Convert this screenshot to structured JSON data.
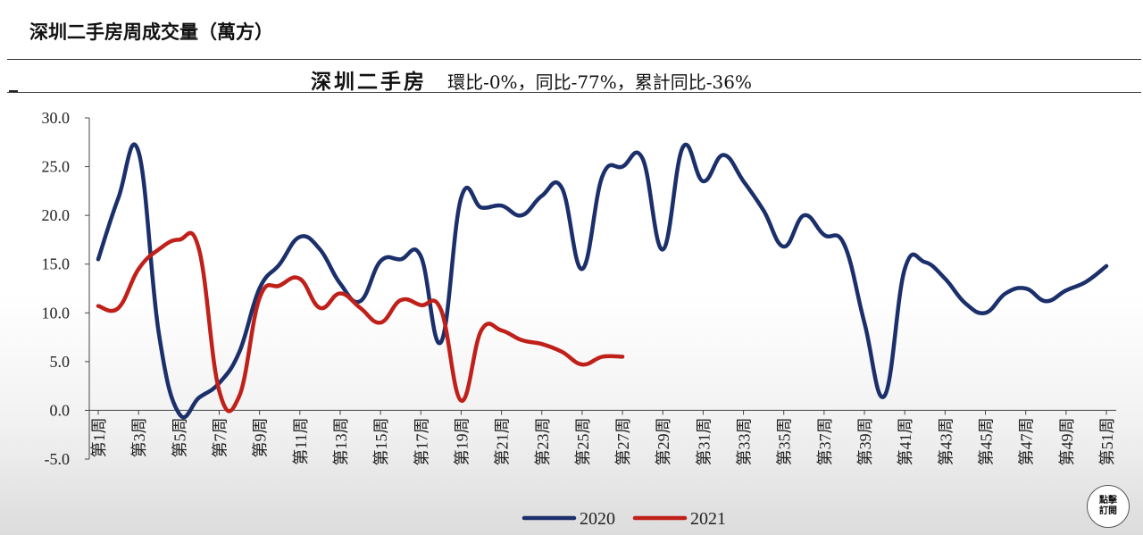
{
  "page": {
    "heading": "深圳二手房周成交量（萬方）"
  },
  "badge": {
    "line1": "點擊",
    "line2": "訂閱"
  },
  "chart_data": {
    "type": "line",
    "title": "深圳二手房",
    "subtitle": "環比-0%，同比-77%，累計同比-36%",
    "ylim": [
      -5,
      30
    ],
    "yticks": [
      "30.0",
      "25.0",
      "20.0",
      "15.0",
      "10.0",
      "5.0",
      "0.0",
      "-5.0"
    ],
    "ytick_values": [
      30,
      25,
      20,
      15,
      10,
      5,
      0,
      -5
    ],
    "x_count": 52,
    "xtick_labels": [
      "第1周",
      "第3周",
      "第5周",
      "第7周",
      "第9周",
      "第11周",
      "第13周",
      "第15周",
      "第17周",
      "第19周",
      "第21周",
      "第23周",
      "第25周",
      "第27周",
      "第29周",
      "第31周",
      "第33周",
      "第35周",
      "第37周",
      "第39周",
      "第41周",
      "第43周",
      "第45周",
      "第47周",
      "第49周",
      "第51周"
    ],
    "xtick_weeks": [
      1,
      3,
      5,
      7,
      9,
      11,
      13,
      15,
      17,
      19,
      21,
      23,
      25,
      27,
      29,
      31,
      33,
      35,
      37,
      39,
      41,
      43,
      45,
      47,
      49,
      51
    ],
    "legend": "bottom-center",
    "series": [
      {
        "name": "2020",
        "color": "#1b2f6b",
        "values": [
          15.5,
          21.8,
          26.5,
          8.0,
          -0.3,
          1.3,
          2.8,
          6.0,
          12.5,
          15.0,
          17.8,
          16.5,
          13.0,
          11.2,
          15.3,
          15.5,
          15.8,
          7.0,
          21.8,
          20.8,
          21.0,
          20.0,
          22.0,
          22.8,
          14.5,
          24.0,
          25.0,
          25.8,
          16.5,
          27.0,
          23.5,
          26.2,
          23.5,
          20.5,
          16.8,
          20.0,
          18.0,
          17.0,
          9.0,
          1.5,
          14.5,
          15.2,
          13.5,
          11.0,
          10.0,
          12.0,
          12.5,
          11.2,
          12.3,
          13.2,
          14.8
        ]
      },
      {
        "name": "2021",
        "color": "#c0201a",
        "values": [
          10.7,
          10.5,
          14.5,
          16.5,
          17.5,
          16.5,
          2.0,
          1.5,
          11.5,
          12.8,
          13.5,
          10.5,
          12.0,
          10.5,
          9.0,
          11.3,
          10.8,
          10.3,
          1.0,
          8.2,
          8.2,
          7.2,
          6.8,
          6.0,
          4.7,
          5.5,
          5.5
        ]
      }
    ]
  }
}
